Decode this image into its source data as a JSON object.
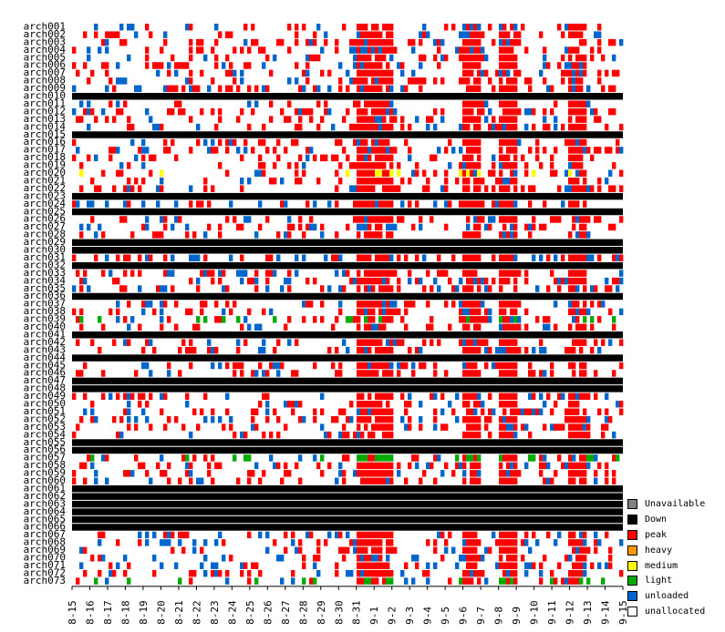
{
  "chart_data": {
    "type": "heatmap",
    "title": "",
    "xlabel": "",
    "ylabel": "",
    "rows": [
      "arch001",
      "arch002",
      "arch003",
      "arch004",
      "arch005",
      "arch006",
      "arch007",
      "arch008",
      "arch009",
      "arch010",
      "arch011",
      "arch012",
      "arch013",
      "arch014",
      "arch015",
      "arch016",
      "arch017",
      "arch018",
      "arch019",
      "arch020",
      "arch021",
      "arch022",
      "arch023",
      "arch024",
      "arch025",
      "arch026",
      "arch027",
      "arch028",
      "arch029",
      "arch030",
      "arch031",
      "arch032",
      "arch033",
      "arch034",
      "arch035",
      "arch036",
      "arch037",
      "arch038",
      "arch039",
      "arch040",
      "arch041",
      "arch042",
      "arch043",
      "arch044",
      "arch045",
      "arch046",
      "arch047",
      "arch048",
      "arch049",
      "arch050",
      "arch051",
      "arch052",
      "arch053",
      "arch054",
      "arch055",
      "arch056",
      "arch057",
      "arch058",
      "arch059",
      "arch060",
      "arch061",
      "arch062",
      "arch063",
      "arch064",
      "arch065",
      "arch066",
      "arch067",
      "arch068",
      "arch069",
      "arch070",
      "arch071",
      "arch072",
      "arch073"
    ],
    "x_ticks": [
      "8-15",
      "8-16",
      "8-17",
      "8-18",
      "8-19",
      "8-20",
      "8-21",
      "8-22",
      "8-23",
      "8-24",
      "8-25",
      "8-26",
      "8-27",
      "8-28",
      "8-29",
      "8-30",
      "8-31",
      "9-1",
      "9-2",
      "9-3",
      "9-4",
      "9-5",
      "9-6",
      "9-7",
      "9-8",
      "9-9",
      "9-10",
      "9-11",
      "9-12",
      "9-13",
      "9-14",
      "9-15"
    ],
    "down_rows": [
      "arch010",
      "arch015",
      "arch023",
      "arch025",
      "arch029",
      "arch030",
      "arch032",
      "arch036",
      "arch041",
      "arch044",
      "arch047",
      "arch048",
      "arch055",
      "arch056",
      "arch061",
      "arch062",
      "arch063",
      "arch064",
      "arch065",
      "arch066"
    ],
    "medium_rows": [
      "arch020"
    ],
    "light_rows": [
      "arch039",
      "arch057",
      "arch073"
    ],
    "peak_periods": [
      [
        "8-31",
        "9-1"
      ],
      [
        "9-6",
        "9-6"
      ],
      [
        "9-8",
        "9-8"
      ],
      [
        "9-12",
        "9-12"
      ]
    ],
    "legend": [
      {
        "label": "Unavailable",
        "color": "#808080"
      },
      {
        "label": "Down",
        "color": "#000000"
      },
      {
        "label": "peak",
        "color": "#ff0000"
      },
      {
        "label": "heavy",
        "color": "#ff9900"
      },
      {
        "label": "medium",
        "color": "#ffff00"
      },
      {
        "label": "light",
        "color": "#00aa00"
      },
      {
        "label": "unloaded",
        "color": "#0066cc"
      },
      {
        "label": "unallocated",
        "color": "#ffffff"
      }
    ]
  }
}
